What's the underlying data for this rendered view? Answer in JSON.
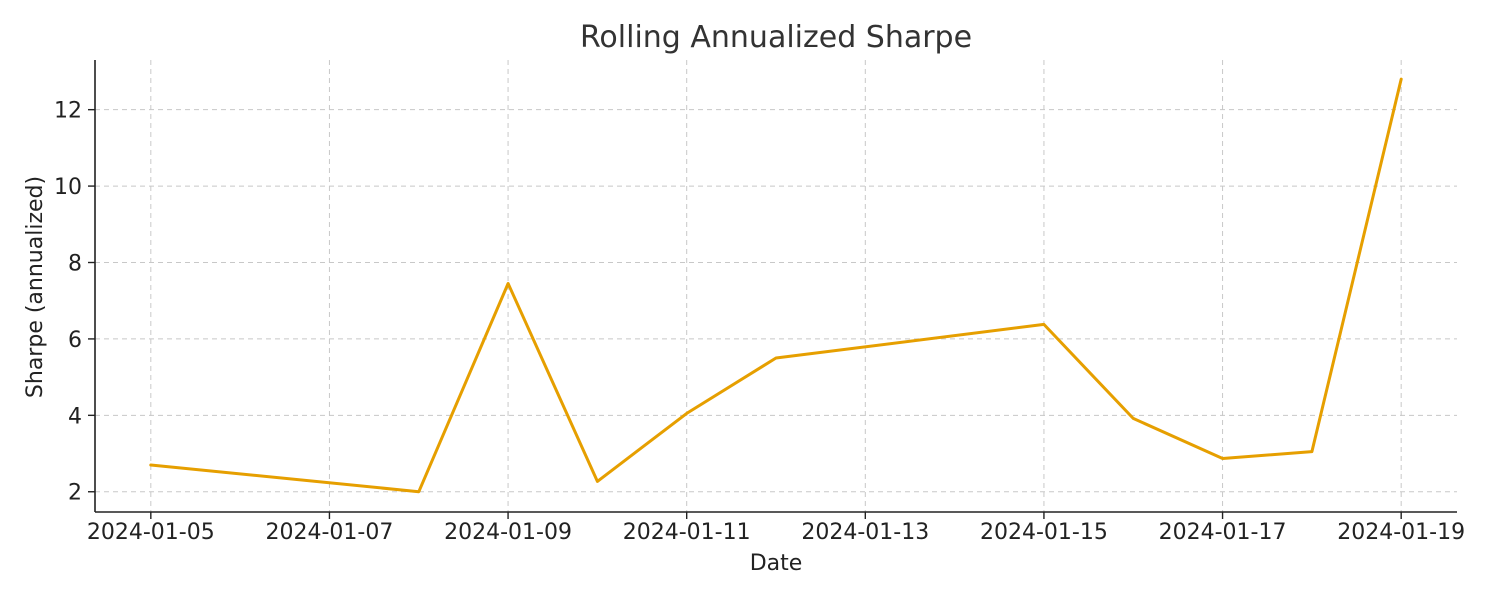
{
  "chart_data": {
    "type": "line",
    "title": "Rolling Annualized Sharpe",
    "xlabel": "Date",
    "ylabel": "Sharpe (annualized)",
    "x_ticks": [
      "2024-01-05",
      "2024-01-07",
      "2024-01-09",
      "2024-01-11",
      "2024-01-13",
      "2024-01-15",
      "2024-01-17",
      "2024-01-19"
    ],
    "y_ticks": [
      2,
      4,
      6,
      8,
      10,
      12
    ],
    "xlim": [
      "2024-01-04T09:00",
      "2024-01-19T15:00"
    ],
    "ylim": [
      1.47,
      13.3
    ],
    "grid": true,
    "series": [
      {
        "color": "#e69f00",
        "x": [
          "2024-01-05",
          "2024-01-08",
          "2024-01-09",
          "2024-01-10",
          "2024-01-11",
          "2024-01-12",
          "2024-01-15",
          "2024-01-16",
          "2024-01-17",
          "2024-01-18",
          "2024-01-19"
        ],
        "y": [
          2.7,
          2.0,
          7.45,
          2.27,
          4.05,
          5.5,
          6.38,
          3.92,
          2.87,
          3.05,
          12.8
        ]
      }
    ]
  }
}
